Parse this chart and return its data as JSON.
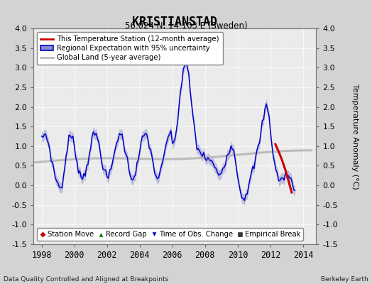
{
  "title": "KRISTIANSTAD",
  "subtitle": "56.024 N, 14.103 E (Sweden)",
  "ylabel": "Temperature Anomaly (°C)",
  "xlabel_bottom_left": "Data Quality Controlled and Aligned at Breakpoints",
  "xlabel_bottom_right": "Berkeley Earth",
  "ylim": [
    -1.5,
    4.0
  ],
  "xlim_start": 1997.5,
  "xlim_end": 2014.8,
  "xticks": [
    1998,
    2000,
    2002,
    2004,
    2006,
    2008,
    2010,
    2012,
    2014
  ],
  "yticks": [
    -1.5,
    -1.0,
    -0.5,
    0.0,
    0.5,
    1.0,
    1.5,
    2.0,
    2.5,
    3.0,
    3.5,
    4.0
  ],
  "bg_color": "#d3d3d3",
  "plot_bg_color": "#ebebeb",
  "grid_color": "#ffffff",
  "blue_line_color": "#0000cc",
  "blue_fill_color": "#8888cc",
  "red_line_color": "#cc0000",
  "gray_line_color": "#bbbbbb",
  "legend_labels": [
    "This Temperature Station (12-month average)",
    "Regional Expectation with 95% uncertainty",
    "Global Land (5-year average)"
  ],
  "bottom_legend": [
    {
      "label": "Station Move",
      "color": "#cc0000",
      "marker": "D"
    },
    {
      "label": "Record Gap",
      "color": "#007700",
      "marker": "^"
    },
    {
      "label": "Time of Obs. Change",
      "color": "#0000cc",
      "marker": "v"
    },
    {
      "label": "Empirical Break",
      "color": "#333333",
      "marker": "s"
    }
  ]
}
